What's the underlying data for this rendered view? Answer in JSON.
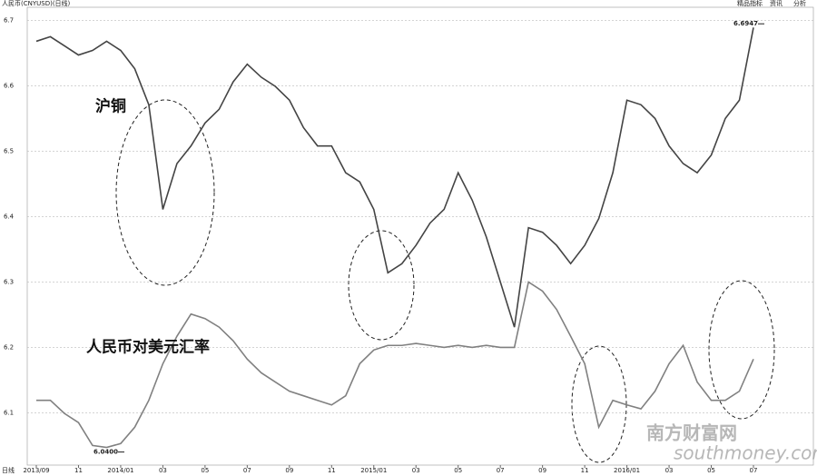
{
  "chart_data": {
    "type": "line",
    "title": "人民币(CNYUSD)(日线)",
    "toolbar": [
      "精品指标",
      "资讯",
      "分析"
    ],
    "period_label": "日线",
    "watermark": {
      "cn": "南方财富网",
      "en": "southmoney.com"
    },
    "categories": [
      "2013/09",
      null,
      null,
      "11",
      null,
      null,
      "2014/01",
      null,
      null,
      "03",
      null,
      null,
      "05",
      null,
      null,
      "07",
      null,
      null,
      "09",
      null,
      null,
      "11",
      null,
      null,
      "2015/01",
      null,
      null,
      "03",
      null,
      null,
      "05",
      null,
      null,
      "07",
      null,
      null,
      "09",
      null,
      null,
      "11",
      null,
      null,
      "2016/01",
      null,
      null,
      "03",
      null,
      null,
      "05",
      null,
      null,
      "07"
    ],
    "series": [
      {
        "name": "沪铜",
        "color": "#444444",
        "values": [
          6.668,
          6.675,
          6.661,
          6.647,
          6.654,
          6.668,
          6.654,
          6.626,
          6.571,
          6.411,
          6.481,
          6.508,
          6.543,
          6.564,
          6.606,
          6.633,
          6.613,
          6.599,
          6.578,
          6.536,
          6.508,
          6.508,
          6.467,
          6.453,
          6.411,
          6.314,
          6.328,
          6.356,
          6.39,
          6.411,
          6.467,
          6.425,
          6.369,
          6.3,
          6.231,
          6.383,
          6.376,
          6.356,
          6.328,
          6.356,
          6.397,
          6.467,
          6.578,
          6.571,
          6.55,
          6.508,
          6.481,
          6.467,
          6.494,
          6.55,
          6.578,
          6.689
        ]
      },
      {
        "name": "人民币对美元汇率",
        "color": "#808080",
        "values": [
          6.119,
          6.119,
          6.099,
          6.085,
          6.05,
          6.047,
          6.053,
          6.078,
          6.119,
          6.175,
          6.217,
          6.251,
          6.244,
          6.231,
          6.21,
          6.182,
          6.161,
          6.147,
          6.133,
          6.126,
          6.119,
          6.112,
          6.126,
          6.175,
          6.196,
          6.203,
          6.203,
          6.206,
          6.203,
          6.2,
          6.203,
          6.2,
          6.203,
          6.2,
          6.2,
          6.3,
          6.286,
          6.258,
          6.217,
          6.175,
          6.078,
          6.119,
          6.112,
          6.106,
          6.133,
          6.175,
          6.203,
          6.147,
          6.119,
          6.119,
          6.133,
          6.182
        ]
      }
    ],
    "annotations": [
      {
        "value": 6.6947,
        "label": "6.6947"
      },
      {
        "value": 6.04,
        "label": "6.0400"
      }
    ],
    "ylim": [
      6.02,
      6.72
    ],
    "yticks": [
      6.1,
      6.2,
      6.3,
      6.4,
      6.5,
      6.6,
      6.7
    ],
    "grid": true
  }
}
